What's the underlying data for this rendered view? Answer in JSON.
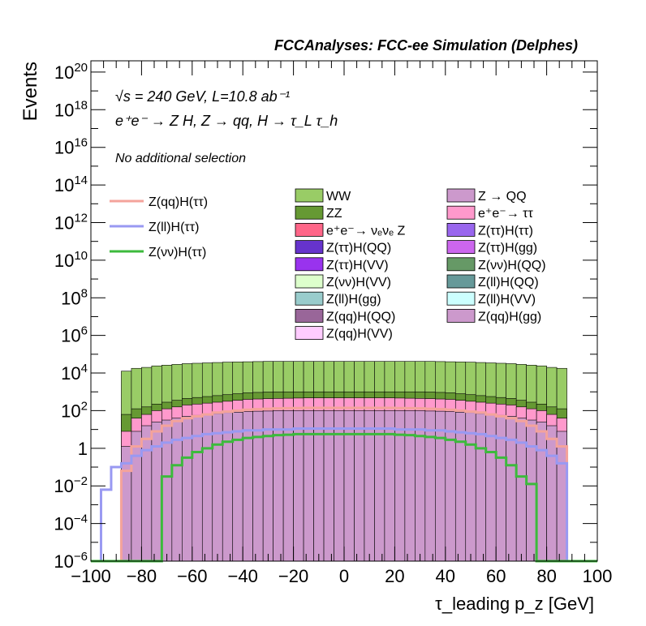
{
  "chart_data": {
    "type": "area",
    "title": "FCCAnalyses: FCC-ee Simulation (Delphes)",
    "xlabel": "τ_leading p_z [GeV]",
    "ylabel": "Events",
    "xlim": [
      -100,
      100
    ],
    "ylim_log10": [
      -6,
      20.6
    ],
    "log_y": true,
    "x_ticks": [
      -100,
      -80,
      -60,
      -40,
      -20,
      0,
      20,
      40,
      60,
      80,
      100
    ],
    "y_ticks": [
      {
        "exp": -6,
        "label": "10^-6"
      },
      {
        "exp": -4,
        "label": "10^-4"
      },
      {
        "exp": -2,
        "label": "10^-2"
      },
      {
        "exp": 0,
        "label": "1"
      },
      {
        "exp": 2,
        "label": "10^2"
      },
      {
        "exp": 4,
        "label": "10^4"
      },
      {
        "exp": 6,
        "label": "10^6"
      },
      {
        "exp": 8,
        "label": "10^8"
      },
      {
        "exp": 10,
        "label": "10^10"
      },
      {
        "exp": 12,
        "label": "10^12"
      },
      {
        "exp": 14,
        "label": "10^14"
      },
      {
        "exp": 16,
        "label": "10^16"
      },
      {
        "exp": 18,
        "label": "10^18"
      },
      {
        "exp": 20,
        "label": "10^20"
      }
    ],
    "annotations": [
      "√s = 240 GeV, L=10.8 ab⁻¹",
      "e⁺e⁻ → Z H, Z → qq, H → τ_L τ_h",
      "No additional selection"
    ],
    "legend_lines": [
      {
        "name": "Z(qq)H(ττ)",
        "color": "#f4a39b"
      },
      {
        "name": "Z(ll)H(ττ)",
        "color": "#9999f2"
      },
      {
        "name": "Z(νν)H(ττ)",
        "color": "#3cba3c"
      }
    ],
    "legend_stack": [
      {
        "name": "WW",
        "color": "#99cc66"
      },
      {
        "name": "Z → QQ",
        "color": "#cc99cc"
      },
      {
        "name": "ZZ",
        "color": "#669933"
      },
      {
        "name": "e⁺e⁻→ ττ",
        "color": "#ff99cc"
      },
      {
        "name": "e⁺e⁻→ νₑνₑ Z",
        "color": "#ff6688"
      },
      {
        "name": "Z(ττ)H(ττ)",
        "color": "#9966ee"
      },
      {
        "name": "Z(ττ)H(QQ)",
        "color": "#6633cc"
      },
      {
        "name": "Z(ττ)H(gg)",
        "color": "#cc66ee"
      },
      {
        "name": "Z(ττ)H(VV)",
        "color": "#9933ee"
      },
      {
        "name": "Z(νν)H(QQ)",
        "color": "#669966"
      },
      {
        "name": "Z(νν)H(VV)",
        "color": "#ddffcc"
      },
      {
        "name": "Z(ll)H(QQ)",
        "color": "#669999"
      },
      {
        "name": "Z(ll)H(gg)",
        "color": "#99cccc"
      },
      {
        "name": "Z(ll)H(VV)",
        "color": "#ccffff"
      },
      {
        "name": "Z(qq)H(QQ)",
        "color": "#996699"
      },
      {
        "name": "Z(qq)H(gg)",
        "color": "#cc99cc"
      },
      {
        "name": "Z(qq)H(VV)",
        "color": "#ffccff"
      }
    ],
    "x_bin_edges": [
      -100,
      -96,
      -92,
      -88,
      -84,
      -80,
      -76,
      -72,
      -68,
      -64,
      -60,
      -56,
      -52,
      -48,
      -44,
      -40,
      -36,
      -32,
      -28,
      -24,
      -20,
      -16,
      -12,
      -8,
      -4,
      0,
      4,
      8,
      12,
      16,
      20,
      24,
      28,
      32,
      36,
      40,
      44,
      48,
      52,
      56,
      60,
      64,
      68,
      72,
      76,
      80,
      84,
      88,
      92,
      96,
      100
    ],
    "stack_layers_log10": [
      {
        "name": "Z → QQ",
        "color": "#cc99cc",
        "values": [
          -6,
          -6,
          -6,
          0.1,
          0.9,
          1.2,
          1.4,
          1.5,
          1.6,
          1.7,
          1.75,
          1.8,
          1.85,
          1.9,
          1.92,
          1.95,
          1.97,
          1.98,
          2.0,
          2.0,
          2.0,
          2.0,
          2.0,
          2.0,
          2.0,
          2.0,
          2.0,
          2.0,
          2.0,
          2.0,
          2.0,
          2.0,
          2.0,
          1.98,
          1.97,
          1.95,
          1.92,
          1.9,
          1.85,
          1.8,
          1.75,
          1.7,
          1.6,
          1.5,
          1.4,
          1.2,
          0.9,
          -6,
          -6,
          -6
        ]
      },
      {
        "name": "e⁺e⁻→ ττ",
        "color": "#ff99cc",
        "values": [
          -6,
          -6,
          -6,
          0.9,
          1.6,
          1.8,
          2.0,
          2.1,
          2.2,
          2.3,
          2.35,
          2.4,
          2.45,
          2.5,
          2.55,
          2.6,
          2.62,
          2.64,
          2.65,
          2.66,
          2.67,
          2.68,
          2.68,
          2.68,
          2.68,
          2.68,
          2.68,
          2.68,
          2.68,
          2.68,
          2.67,
          2.66,
          2.65,
          2.64,
          2.62,
          2.6,
          2.55,
          2.5,
          2.45,
          2.4,
          2.35,
          2.3,
          2.2,
          2.1,
          2.0,
          1.8,
          1.6,
          -6,
          -6,
          -6
        ]
      },
      {
        "name": "ZZ",
        "color": "#669933",
        "values": [
          -6,
          -6,
          -6,
          1.8,
          2.1,
          2.2,
          2.35,
          2.45,
          2.55,
          2.65,
          2.7,
          2.75,
          2.8,
          2.85,
          2.9,
          2.95,
          2.97,
          2.99,
          3.0,
          3.0,
          3.0,
          3.0,
          3.0,
          3.0,
          3.0,
          3.0,
          3.0,
          3.0,
          3.0,
          3.0,
          3.0,
          3.0,
          3.0,
          2.99,
          2.97,
          2.95,
          2.9,
          2.85,
          2.8,
          2.75,
          2.7,
          2.65,
          2.55,
          2.45,
          2.35,
          2.2,
          2.1,
          -6,
          -6,
          -6
        ]
      },
      {
        "name": "WW",
        "color": "#99cc66",
        "values": [
          -6,
          -6,
          -6,
          4.1,
          4.25,
          4.3,
          4.38,
          4.42,
          4.46,
          4.5,
          4.52,
          4.54,
          4.56,
          4.58,
          4.59,
          4.6,
          4.61,
          4.62,
          4.62,
          4.62,
          4.62,
          4.62,
          4.62,
          4.62,
          4.62,
          4.62,
          4.62,
          4.62,
          4.62,
          4.62,
          4.62,
          4.62,
          4.62,
          4.62,
          4.61,
          4.6,
          4.59,
          4.58,
          4.56,
          4.54,
          4.52,
          4.5,
          4.46,
          4.42,
          4.38,
          4.3,
          4.25,
          -6,
          -6,
          -6
        ]
      }
    ],
    "signal_lines_log10": [
      {
        "name": "Z(qq)H(ττ)",
        "color": "#f4a39b",
        "values": [
          -6,
          -6,
          -6,
          -1.2,
          0.1,
          0.5,
          0.9,
          1.2,
          1.45,
          1.6,
          1.7,
          1.8,
          1.9,
          1.95,
          2.0,
          2.05,
          2.08,
          2.1,
          2.12,
          2.13,
          2.14,
          2.15,
          2.15,
          2.15,
          2.15,
          2.15,
          2.15,
          2.15,
          2.15,
          2.15,
          2.14,
          2.13,
          2.12,
          2.1,
          2.08,
          2.05,
          2.0,
          1.95,
          1.9,
          1.8,
          1.7,
          1.6,
          1.45,
          1.2,
          0.9,
          0.5,
          0.1,
          -6,
          -6,
          -6
        ]
      },
      {
        "name": "Z(ll)H(ττ)",
        "color": "#9999f2",
        "values": [
          -6,
          -2.2,
          -1.0,
          -0.8,
          -0.4,
          -0.1,
          0.1,
          0.3,
          0.45,
          0.55,
          0.65,
          0.75,
          0.8,
          0.85,
          0.9,
          0.95,
          0.95,
          1.0,
          1.0,
          1.0,
          1.05,
          1.05,
          1.05,
          1.05,
          1.05,
          1.05,
          1.05,
          1.05,
          1.05,
          1.05,
          1.0,
          1.0,
          1.0,
          0.95,
          0.95,
          0.9,
          0.85,
          0.8,
          0.75,
          0.65,
          0.55,
          0.45,
          0.3,
          0.1,
          -0.1,
          -0.4,
          -0.8,
          -6,
          -6,
          -6
        ]
      },
      {
        "name": "Z(νν)H(ττ)",
        "color": "#3cba3c",
        "values": [
          -6,
          -6,
          -6,
          -6,
          -6,
          -6,
          -6,
          -1.5,
          -0.9,
          -0.5,
          -0.2,
          0.0,
          0.2,
          0.35,
          0.45,
          0.55,
          0.6,
          0.65,
          0.7,
          0.72,
          0.75,
          0.75,
          0.75,
          0.75,
          0.75,
          0.75,
          0.75,
          0.75,
          0.75,
          0.75,
          0.72,
          0.7,
          0.65,
          0.6,
          0.55,
          0.45,
          0.35,
          0.2,
          0.0,
          -0.2,
          -0.5,
          -0.9,
          -1.5,
          -1.9,
          -6,
          -6,
          -6,
          -6,
          -6,
          -6
        ]
      }
    ]
  }
}
